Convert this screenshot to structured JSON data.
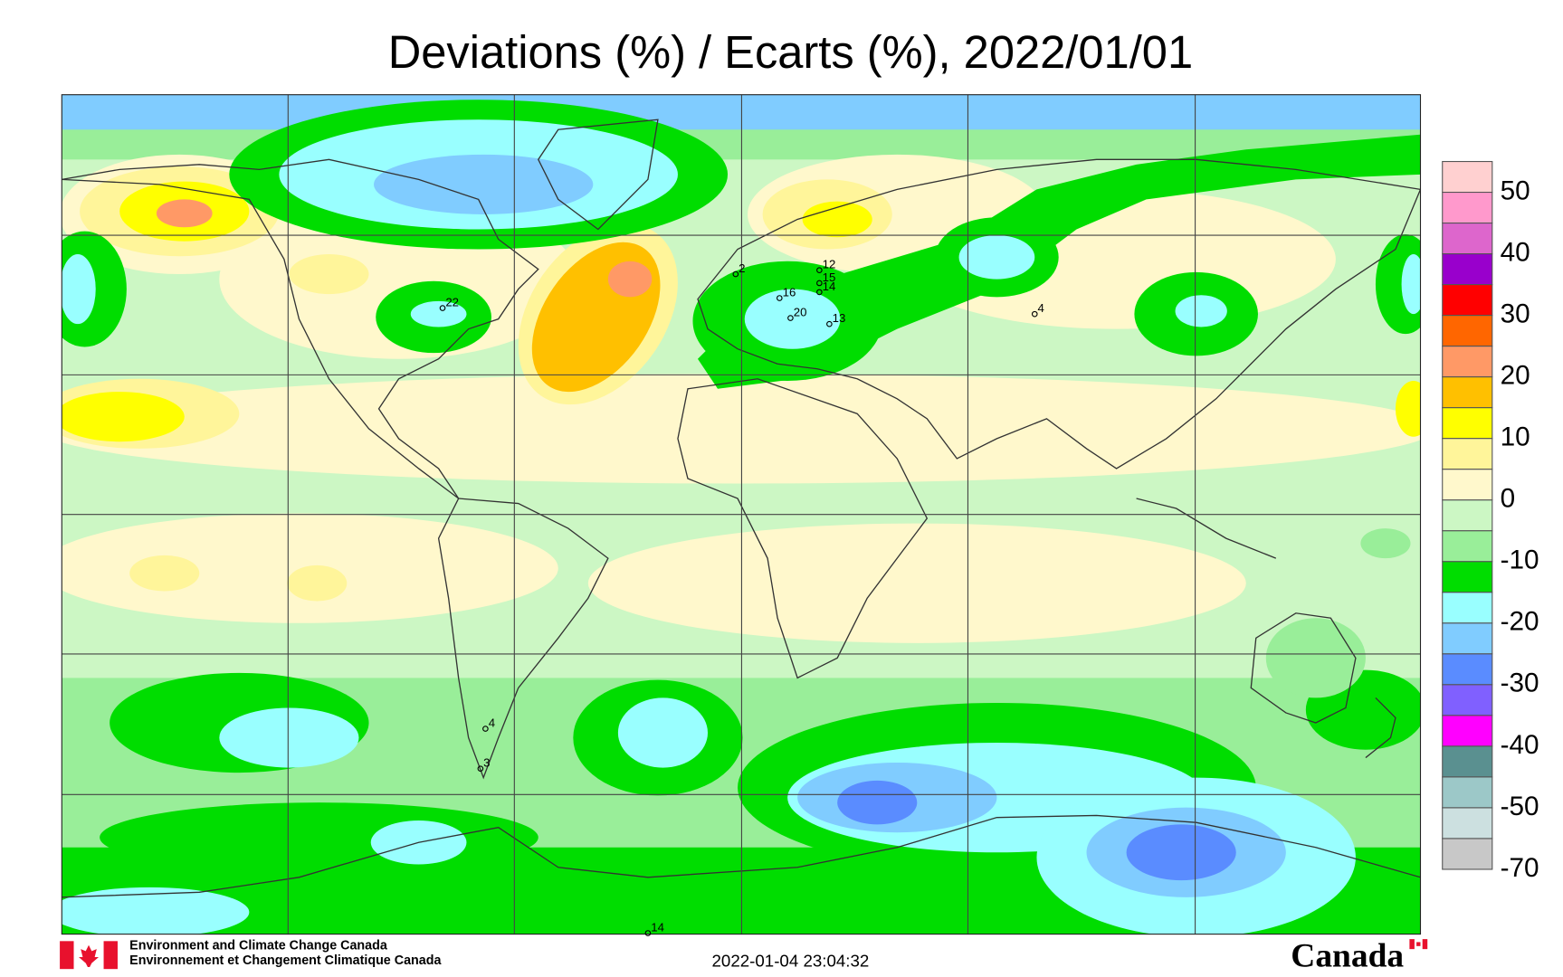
{
  "title": "Deviations (%) / Ecarts (%), 2022/01/01",
  "colorbar": {
    "colors": [
      "#ffd0d0",
      "#ff99cc",
      "#dd66cc",
      "#9900cc",
      "#ff0000",
      "#ff6600",
      "#ff9966",
      "#ffc000",
      "#ffff00",
      "#fff59a",
      "#fff8cc",
      "#ccf7c4",
      "#99ee99",
      "#00dd00",
      "#99ffff",
      "#80ccff",
      "#5a8cff",
      "#8060ff",
      "#ff00ff",
      "#5a9090",
      "#9cc8c8",
      "#cce0e0",
      "#c8c8c8"
    ],
    "ticks": [
      50,
      40,
      30,
      20,
      10,
      0,
      -10,
      -20,
      -30,
      -40,
      -50,
      -70
    ]
  },
  "stations": [
    "2",
    "12",
    "16",
    "15",
    "14",
    "20",
    "13",
    "22",
    "4",
    "4",
    "3",
    "14"
  ],
  "footer": {
    "agency_en": "Environment and Climate Change Canada",
    "agency_fr": "Environnement et Changement Climatique Canada",
    "timestamp": "2022-01-04 23:04:32",
    "wordmark": "Canada"
  }
}
